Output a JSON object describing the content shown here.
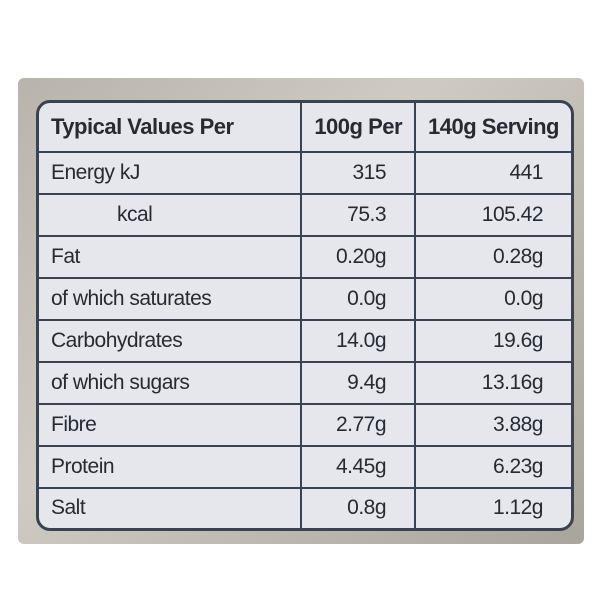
{
  "table": {
    "header": [
      "Typical Values Per",
      "100g Per",
      "140g Serving"
    ],
    "rows": [
      [
        "Energy kJ",
        "315",
        "441"
      ],
      [
        "kcal",
        "75.3",
        "105.42"
      ],
      [
        "Fat",
        "0.20g",
        "0.28g"
      ],
      [
        "of which saturates",
        "0.0g",
        "0.0g"
      ],
      [
        "Carbohydrates",
        "14.0g",
        "19.6g"
      ],
      [
        "of which sugars",
        "9.4g",
        "13.16g"
      ],
      [
        "Fibre",
        "2.77g",
        "3.88g"
      ],
      [
        "Protein",
        "4.45g",
        "6.23g"
      ],
      [
        "Salt",
        "0.8g",
        "1.12g"
      ]
    ]
  }
}
